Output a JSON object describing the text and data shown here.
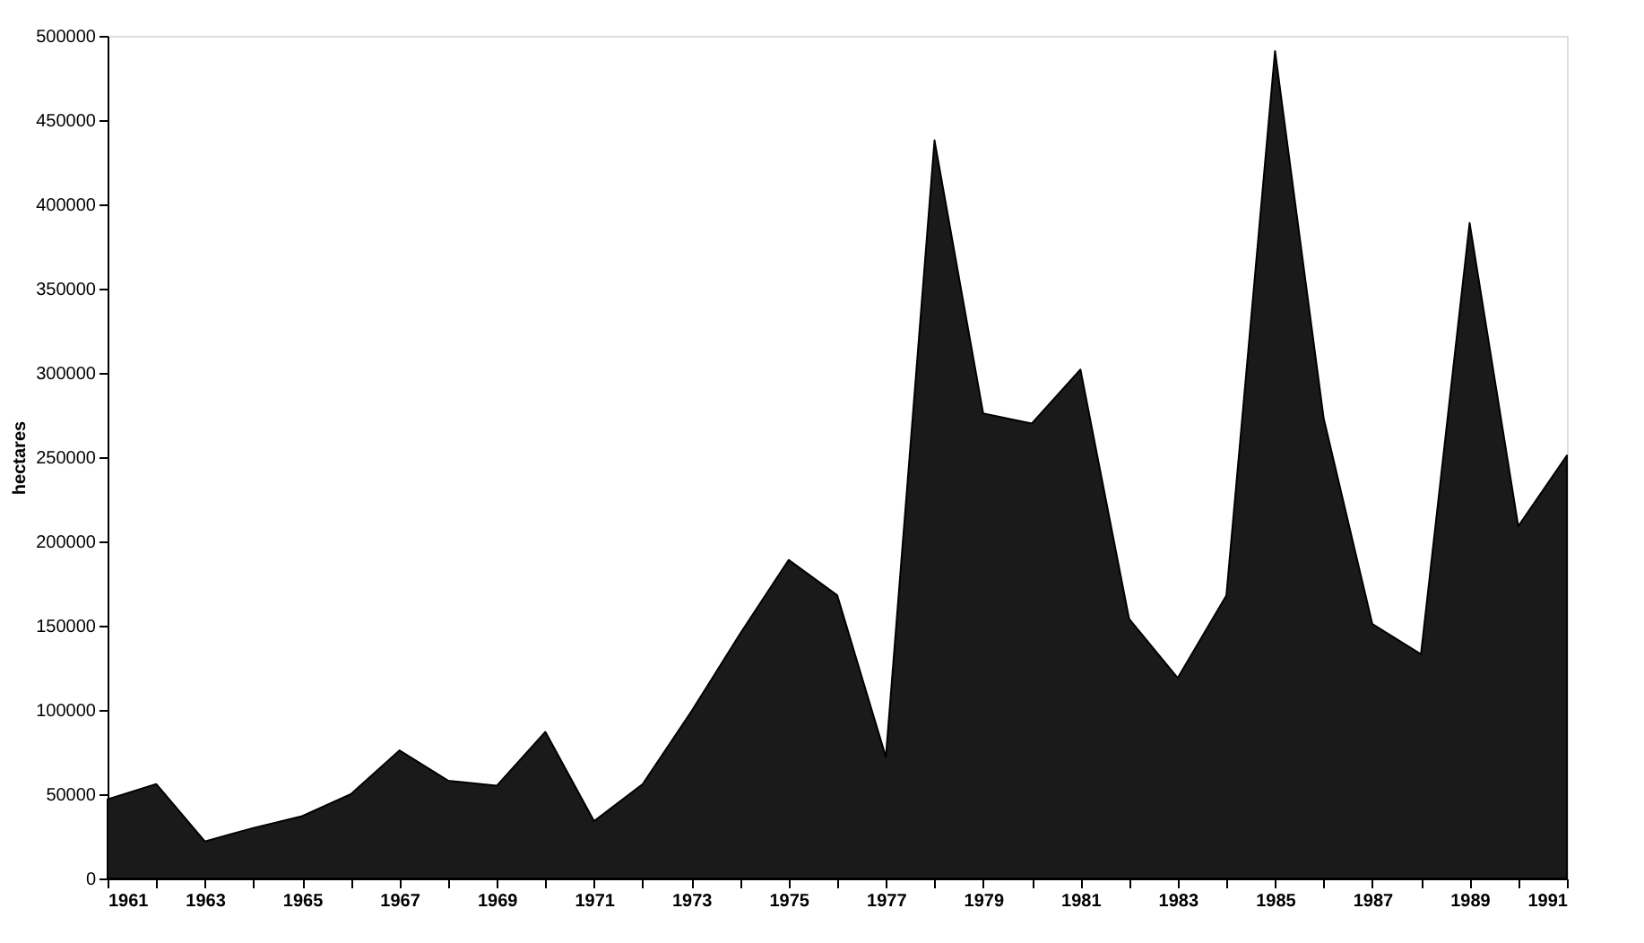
{
  "chart_data": {
    "type": "area",
    "ylabel": "hectares",
    "x": [
      1961,
      1962,
      1963,
      1964,
      1965,
      1966,
      1967,
      1968,
      1969,
      1970,
      1971,
      1972,
      1973,
      1974,
      1975,
      1976,
      1977,
      1978,
      1979,
      1980,
      1981,
      1982,
      1983,
      1984,
      1985,
      1986,
      1987,
      1988,
      1989,
      1990,
      1991
    ],
    "series": [
      {
        "color": "#1a1a1a",
        "values": [
          47000,
          56000,
          22000,
          30000,
          37000,
          50000,
          76000,
          58000,
          55000,
          87000,
          34000,
          56000,
          99000,
          145000,
          189000,
          168000,
          72000,
          438000,
          276000,
          270000,
          302000,
          154000,
          119000,
          168000,
          491000,
          273000,
          151000,
          133000,
          389000,
          209000,
          251000
        ]
      }
    ],
    "xlim": [
      1961,
      1991
    ],
    "xticks": [
      1961,
      {
        "value": 1962,
        "label": null
      },
      1963,
      {
        "value": 1964,
        "label": null
      },
      1965,
      {
        "value": 1966,
        "label": null
      },
      1967,
      {
        "value": 1968,
        "label": null
      },
      1969,
      {
        "value": 1970,
        "label": null
      },
      1971,
      {
        "value": 1972,
        "label": null
      },
      1973,
      {
        "value": 1974,
        "label": null
      },
      1975,
      {
        "value": 1976,
        "label": null
      },
      1977,
      {
        "value": 1978,
        "label": null
      },
      1979,
      {
        "value": 1980,
        "label": null
      },
      1981,
      {
        "value": 1982,
        "label": null
      },
      1983,
      {
        "value": 1984,
        "label": null
      },
      1985,
      {
        "value": 1986,
        "label": null
      },
      1987,
      {
        "value": 1988,
        "label": null
      },
      1989,
      {
        "value": 1990,
        "label": null
      },
      1991
    ],
    "ylim": [
      0,
      500000
    ],
    "yticks": [
      0,
      50000,
      100000,
      150000,
      200000,
      250000,
      300000,
      350000,
      400000,
      450000,
      500000
    ],
    "grid": false,
    "legend": false
  }
}
